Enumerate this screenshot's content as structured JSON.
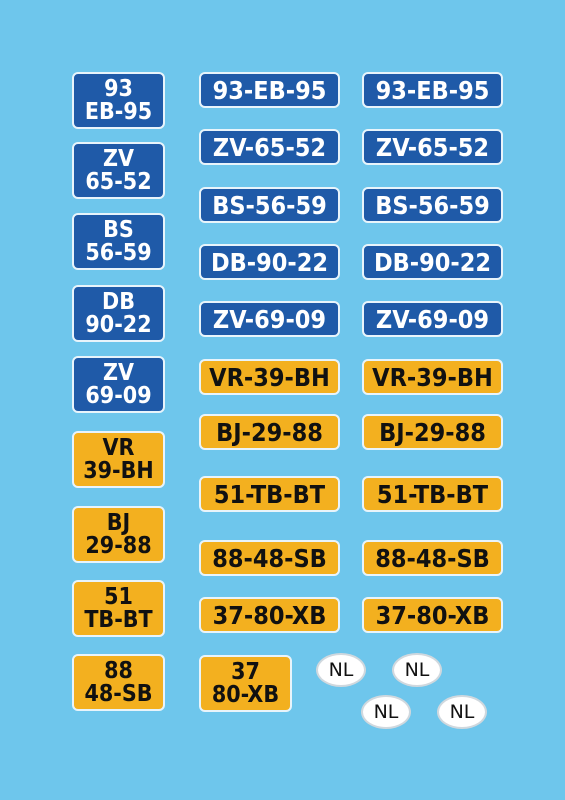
{
  "colors": {
    "background": "#6ec6ec",
    "blue_plate": "#1f5aa8",
    "yellow_plate": "#f3b01f",
    "sticker": "#ffffff"
  },
  "square_plates": [
    {
      "line1": "93",
      "line2": "EB-95",
      "color": "blue"
    },
    {
      "line1": "ZV",
      "line2": "65-52",
      "color": "blue"
    },
    {
      "line1": "BS",
      "line2": "56-59",
      "color": "blue"
    },
    {
      "line1": "DB",
      "line2": "90-22",
      "color": "blue"
    },
    {
      "line1": "ZV",
      "line2": "69-09",
      "color": "blue"
    },
    {
      "line1": "VR",
      "line2": "39-BH",
      "color": "yellow"
    },
    {
      "line1": "BJ",
      "line2": "29-88",
      "color": "yellow"
    },
    {
      "line1": "51",
      "line2": "TB-BT",
      "color": "yellow"
    },
    {
      "line1": "88",
      "line2": "48-SB",
      "color": "yellow"
    },
    {
      "line1": "37",
      "line2": "80-XB",
      "color": "yellow"
    }
  ],
  "wide_plates_col1": [
    {
      "text": "93-EB-95",
      "color": "blue"
    },
    {
      "text": "ZV-65-52",
      "color": "blue"
    },
    {
      "text": "BS-56-59",
      "color": "blue"
    },
    {
      "text": "DB-90-22",
      "color": "blue"
    },
    {
      "text": "ZV-69-09",
      "color": "blue"
    },
    {
      "text": "VR-39-BH",
      "color": "yellow"
    },
    {
      "text": "BJ-29-88",
      "color": "yellow"
    },
    {
      "text": "51-TB-BT",
      "color": "yellow"
    },
    {
      "text": "88-48-SB",
      "color": "yellow"
    },
    {
      "text": "37-80-XB",
      "color": "yellow"
    }
  ],
  "wide_plates_col2": [
    {
      "text": "93-EB-95",
      "color": "blue"
    },
    {
      "text": "ZV-65-52",
      "color": "blue"
    },
    {
      "text": "BS-56-59",
      "color": "blue"
    },
    {
      "text": "DB-90-22",
      "color": "blue"
    },
    {
      "text": "ZV-69-09",
      "color": "blue"
    },
    {
      "text": "VR-39-BH",
      "color": "yellow"
    },
    {
      "text": "BJ-29-88",
      "color": "yellow"
    },
    {
      "text": "51-TB-BT",
      "color": "yellow"
    },
    {
      "text": "88-48-SB",
      "color": "yellow"
    },
    {
      "text": "37-80-XB",
      "color": "yellow"
    }
  ],
  "nl_stickers": [
    "NL",
    "NL",
    "NL",
    "NL"
  ]
}
